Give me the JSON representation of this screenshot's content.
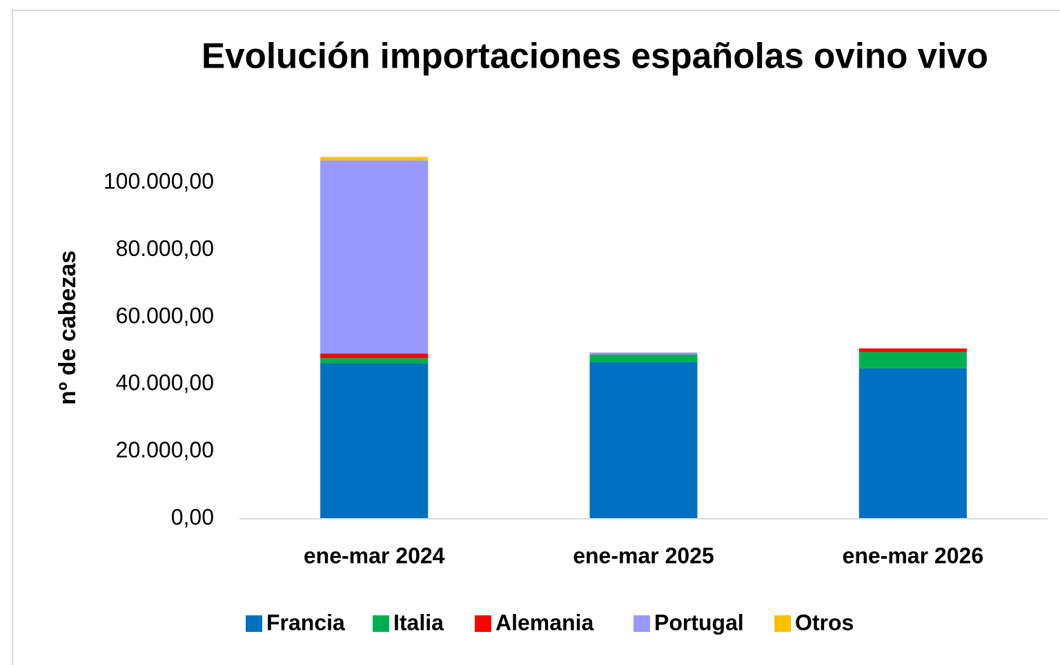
{
  "chart_data": {
    "type": "stacked_bar",
    "title": "Evolución importaciones españolas ovino vivo",
    "y_label": "nº de cabezas",
    "categories": [
      "ene-mar 2024",
      "ene-mar 2025",
      "ene-mar 2026"
    ],
    "series": [
      {
        "name": "Francia",
        "color": "#0070c0",
        "values": [
          46200,
          46600,
          44800
        ]
      },
      {
        "name": "Italia",
        "color": "#00b050",
        "values": [
          1600,
          2300,
          4900
        ]
      },
      {
        "name": "Alemania",
        "color": "#ff0000",
        "values": [
          1400,
          0,
          1000
        ]
      },
      {
        "name": "Portugal",
        "color": "#9999ff",
        "values": [
          57500,
          600,
          0
        ]
      },
      {
        "name": "Otros",
        "color": "#ffc000",
        "values": [
          1000,
          0,
          0
        ]
      }
    ],
    "ylim": [
      0,
      110000
    ],
    "yticks": [
      {
        "value": 0,
        "label": "0,00"
      },
      {
        "value": 20000,
        "label": "20.000,00"
      },
      {
        "value": 40000,
        "label": "40.000,00"
      },
      {
        "value": 60000,
        "label": "60.000,00"
      },
      {
        "value": 80000,
        "label": "80.000,00"
      },
      {
        "value": 100000,
        "label": "100.000,00"
      }
    ],
    "grid": false,
    "legend": "bottom"
  }
}
